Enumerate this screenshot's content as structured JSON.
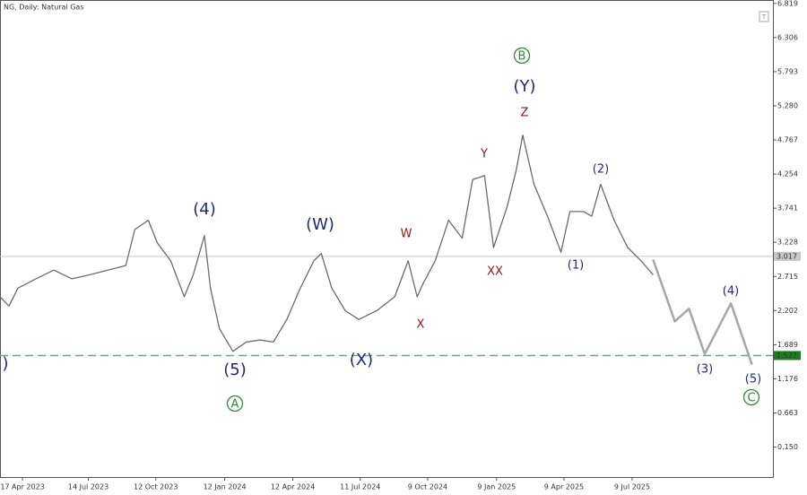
{
  "header": {
    "title": "NG, Daily: Natural Gas"
  },
  "chart_data": {
    "type": "line",
    "xlim": [
      "2023-03-18",
      "2026-01-13"
    ],
    "ylim": [
      -0.3,
      6.87
    ],
    "yticks": [
      6.819,
      6.306,
      5.793,
      {
        "value": 5.28,
        "label": "5.280"
      },
      4.767,
      4.254,
      3.741,
      3.228,
      2.715,
      2.202,
      1.689,
      1.176,
      0.663,
      {
        "value": 0.15,
        "label": "0.150"
      }
    ],
    "xticks": [
      {
        "value": "2023-04-17",
        "label": "17 Apr 2023"
      },
      {
        "value": "2023-07-14",
        "label": "14 Jul 2023"
      },
      {
        "value": "2023-10-12",
        "label": "12 Oct 2023"
      },
      {
        "value": "2024-01-12",
        "label": "12 Jan 2024"
      },
      {
        "value": "2024-04-12",
        "label": "12 Apr 2024"
      },
      {
        "value": "2024-07-11",
        "label": "11 Jul 2024"
      },
      {
        "value": "2024-10-09",
        "label": "9 Oct 2024"
      },
      {
        "value": "2025-01-09",
        "label": "9 Jan 2025"
      },
      {
        "value": "2025-04-09",
        "label": "9 Apr 2025"
      },
      {
        "value": "2025-07-09",
        "label": "9 Jul 2025"
      }
    ],
    "series": [
      {
        "color": "#6b6b6b",
        "x": [
          "2023-03-18",
          "2023-03-30",
          "2023-04-11",
          "2023-05-05",
          "2023-05-29",
          "2023-06-22",
          "2023-07-16",
          "2023-08-09",
          "2023-09-02",
          "2023-09-14",
          "2023-10-02",
          "2023-10-14",
          "2023-11-01",
          "2023-11-19",
          "2023-12-01",
          "2023-12-16",
          "2023-12-24",
          "2024-01-05",
          "2024-01-23",
          "2024-02-10",
          "2024-02-28",
          "2024-03-17",
          "2024-04-04",
          "2024-04-22",
          "2024-05-10",
          "2024-05-20",
          "2024-06-03",
          "2024-06-21",
          "2024-07-09",
          "2024-08-02",
          "2024-08-26",
          "2024-09-13",
          "2024-09-25",
          "2024-10-03",
          "2024-10-19",
          "2024-11-06",
          "2024-11-24",
          "2024-12-08",
          "2024-12-24",
          "2025-01-05",
          "2025-01-23",
          "2025-02-04",
          "2025-02-13",
          "2025-02-28",
          "2025-03-18",
          "2025-04-05",
          "2025-04-17",
          "2025-05-05",
          "2025-05-16",
          "2025-05-28",
          "2025-06-15",
          "2025-07-03",
          "2025-07-21",
          "2025-08-06"
        ],
        "values": [
          2.41,
          2.27,
          2.54,
          2.68,
          2.81,
          2.68,
          2.74,
          2.81,
          2.88,
          3.42,
          3.56,
          3.22,
          2.95,
          2.41,
          2.74,
          3.33,
          2.54,
          1.93,
          1.59,
          1.73,
          1.76,
          1.73,
          2.07,
          2.54,
          2.95,
          3.06,
          2.54,
          2.2,
          2.07,
          2.2,
          2.41,
          2.95,
          2.41,
          2.61,
          2.95,
          3.56,
          3.29,
          4.17,
          4.23,
          3.15,
          3.76,
          4.3,
          4.84,
          4.1,
          3.62,
          3.08,
          3.69,
          3.69,
          3.62,
          4.1,
          3.56,
          3.15,
          2.95,
          2.74
        ]
      },
      {
        "color": "#a6a6a6",
        "x": [
          "2025-08-06",
          "2025-09-04",
          "2025-09-23",
          "2025-10-14",
          "2025-11-18",
          "2025-12-16"
        ],
        "values": [
          2.97,
          2.04,
          2.23,
          1.55,
          2.31,
          1.39
        ]
      }
    ],
    "levels": [
      {
        "value": 3.017,
        "color": "#c8c8c8",
        "label_color": "#c8c8c8",
        "dashed": false
      },
      {
        "value": 1.527,
        "color": "#6aa872",
        "label_color": "#1e7b1e",
        "dashed": true
      }
    ],
    "annotations": [
      ")",
      "(4)",
      "(5)",
      "A",
      "(W)",
      "(X)",
      "W",
      "X",
      "Y",
      "XX",
      "Z",
      "(Y)",
      "B",
      "(1)",
      "(2)",
      "(4)",
      "(3)",
      "(5)",
      "C"
    ]
  }
}
